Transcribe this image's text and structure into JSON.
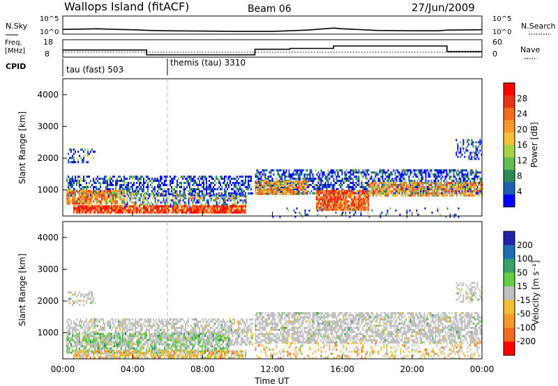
{
  "header": {
    "station": "Wallops Island (fitACF)",
    "beam": "Beam 06",
    "date": "27/Jun/2009"
  },
  "chart_data": [
    {
      "type": "line",
      "name": "nsky-nsearch",
      "left_label": "N.Sky",
      "right_label": "N.Search",
      "left_ticks": [
        "10^5",
        "10^0"
      ],
      "right_ticks": [
        "10^5",
        "10^0"
      ],
      "x": [
        0,
        1,
        2,
        3,
        4,
        5,
        6,
        8,
        10,
        12,
        14,
        15.5,
        16,
        18,
        20,
        21.5,
        22,
        24
      ],
      "y": [
        1.2,
        1.3,
        1.4,
        1.2,
        1.1,
        0.9,
        0.8,
        0.7,
        0.6,
        0.6,
        1.0,
        1.6,
        1.4,
        0.9,
        0.8,
        0.8,
        1.0,
        1.1
      ]
    },
    {
      "type": "line",
      "name": "frequency-nave",
      "left_label": "Freq.",
      "left_units": "[MHz]",
      "right_label": "Nave",
      "left_ticks": [
        "18",
        "8"
      ],
      "right_ticks": [
        "60",
        "0"
      ],
      "series": [
        {
          "x": [
            0,
            4.8,
            4.8,
            11,
            11,
            13,
            13,
            14.5,
            14.5,
            15.5,
            15.5,
            22,
            22,
            24
          ],
          "y": [
            12,
            12,
            9,
            9,
            12.5,
            12.5,
            13,
            13,
            13,
            13,
            14.5,
            14.5,
            11,
            11
          ]
        }
      ]
    },
    {
      "type": "table",
      "name": "cpid",
      "label": "CPID",
      "segments": [
        {
          "start": 0,
          "end": 6,
          "text": "tau (fast) 503"
        },
        {
          "start": 6,
          "end": 24,
          "text": "themis (tau) 3310"
        }
      ]
    },
    {
      "type": "heatmap",
      "name": "power",
      "ylabel": "Slant Range [km]",
      "yticks": [
        "1000",
        "2000",
        "3000",
        "4000"
      ],
      "ylim": [
        180,
        4500
      ],
      "xlim": [
        0,
        24
      ],
      "colorbar_label": "Power [dB]",
      "colorbar_ticks": [
        "4",
        "8",
        "12",
        "16",
        "20",
        "24",
        "28"
      ],
      "colors": [
        "#0000ff",
        "#1f5fb0",
        "#2e8b57",
        "#66bb55",
        "#a8d24a",
        "#f2c23a",
        "#f59a2a",
        "#f36a20",
        "#e8321a",
        "#ff0000"
      ]
    },
    {
      "type": "heatmap",
      "name": "velocity",
      "ylabel": "Slant Range [km]",
      "yticks": [
        "1000",
        "2000",
        "3000",
        "4000"
      ],
      "ylim": [
        180,
        4500
      ],
      "xlim": [
        0,
        24
      ],
      "colorbar_label": "Velocity [m s⁻¹]",
      "colorbar_ticks": [
        "200",
        "100",
        "50",
        "15",
        "-15",
        "-50",
        "-100",
        "-200"
      ],
      "colors": [
        "#2222aa",
        "#1f6fb0",
        "#3aa06a",
        "#66cc44",
        "#c0c0c0",
        "#f0c030",
        "#f59a2a",
        "#f36a20",
        "#ff0000"
      ]
    }
  ],
  "xaxis": {
    "ticks": [
      "00:00",
      "04:00",
      "08:00",
      "12:00",
      "16:00",
      "20:00",
      "00:00"
    ],
    "label": "Time UT"
  }
}
